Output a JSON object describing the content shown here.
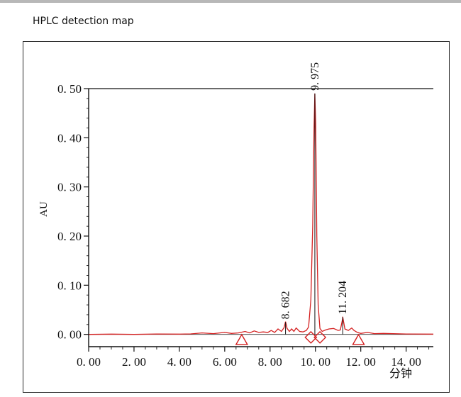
{
  "header": {
    "caption": "HPLC detection map"
  },
  "chart_data": {
    "type": "line",
    "xlabel": "分钟",
    "ylabel": "AU",
    "xlim": [
      0,
      15.2
    ],
    "ylim": [
      -0.025,
      0.5
    ],
    "x_ticks": [
      "0.00",
      "2.00",
      "4.00",
      "6.00",
      "8.00",
      "10.00",
      "12.00",
      "14.00"
    ],
    "y_ticks": [
      "0.00",
      "0.10",
      "0.20",
      "0.30",
      "0.40",
      "0.50"
    ],
    "series": [
      {
        "color": "#d42020",
        "points": [
          [
            0,
            0.0
          ],
          [
            1,
            0.0005
          ],
          [
            2,
            0.0
          ],
          [
            3,
            0.0008
          ],
          [
            4,
            0.0005
          ],
          [
            4.5,
            0.001
          ],
          [
            5.0,
            0.003
          ],
          [
            5.5,
            0.0015
          ],
          [
            6.0,
            0.004
          ],
          [
            6.3,
            0.002
          ],
          [
            6.6,
            0.003
          ],
          [
            6.9,
            0.006
          ],
          [
            7.1,
            0.003
          ],
          [
            7.3,
            0.007
          ],
          [
            7.5,
            0.004
          ],
          [
            7.7,
            0.005
          ],
          [
            7.9,
            0.004
          ],
          [
            8.05,
            0.008
          ],
          [
            8.2,
            0.004
          ],
          [
            8.35,
            0.011
          ],
          [
            8.5,
            0.006
          ],
          [
            8.62,
            0.014
          ],
          [
            8.682,
            0.026
          ],
          [
            8.75,
            0.012
          ],
          [
            8.85,
            0.006
          ],
          [
            8.95,
            0.011
          ],
          [
            9.05,
            0.006
          ],
          [
            9.15,
            0.013
          ],
          [
            9.3,
            0.006
          ],
          [
            9.45,
            0.005
          ],
          [
            9.6,
            0.008
          ],
          [
            9.7,
            0.015
          ],
          [
            9.8,
            0.07
          ],
          [
            9.88,
            0.22
          ],
          [
            9.94,
            0.42
          ],
          [
            9.975,
            0.49
          ],
          [
            10.01,
            0.43
          ],
          [
            10.06,
            0.2
          ],
          [
            10.12,
            0.06
          ],
          [
            10.2,
            0.012
          ],
          [
            10.3,
            0.006
          ],
          [
            10.45,
            0.009
          ],
          [
            10.6,
            0.011
          ],
          [
            10.8,
            0.012
          ],
          [
            11.0,
            0.008
          ],
          [
            11.1,
            0.009
          ],
          [
            11.2,
            0.032
          ],
          [
            11.204,
            0.036
          ],
          [
            11.3,
            0.011
          ],
          [
            11.45,
            0.008
          ],
          [
            11.6,
            0.013
          ],
          [
            11.7,
            0.008
          ],
          [
            11.85,
            0.004
          ],
          [
            12.0,
            0.002
          ],
          [
            12.3,
            0.004
          ],
          [
            12.6,
            0.0015
          ],
          [
            13.0,
            0.002
          ],
          [
            14.0,
            0.0008
          ],
          [
            15.2,
            0.0005
          ]
        ]
      }
    ],
    "peak_labels": [
      {
        "x": 8.682,
        "text": "8.682",
        "y_from": 0.025,
        "y_to": 0.0
      },
      {
        "x": 9.975,
        "text": "9.975",
        "y_from": 0.49,
        "y_to": 0.0
      },
      {
        "x": 11.204,
        "text": "11.204",
        "y_from": 0.035,
        "y_to": 0.0
      }
    ],
    "markers": [
      {
        "shape": "triangle",
        "x": 6.75,
        "y": -0.012
      },
      {
        "shape": "diamond",
        "x": 9.8,
        "y": -0.006
      },
      {
        "shape": "diamond",
        "x": 10.2,
        "y": -0.006
      },
      {
        "shape": "triangle",
        "x": 11.9,
        "y": -0.012
      }
    ]
  }
}
